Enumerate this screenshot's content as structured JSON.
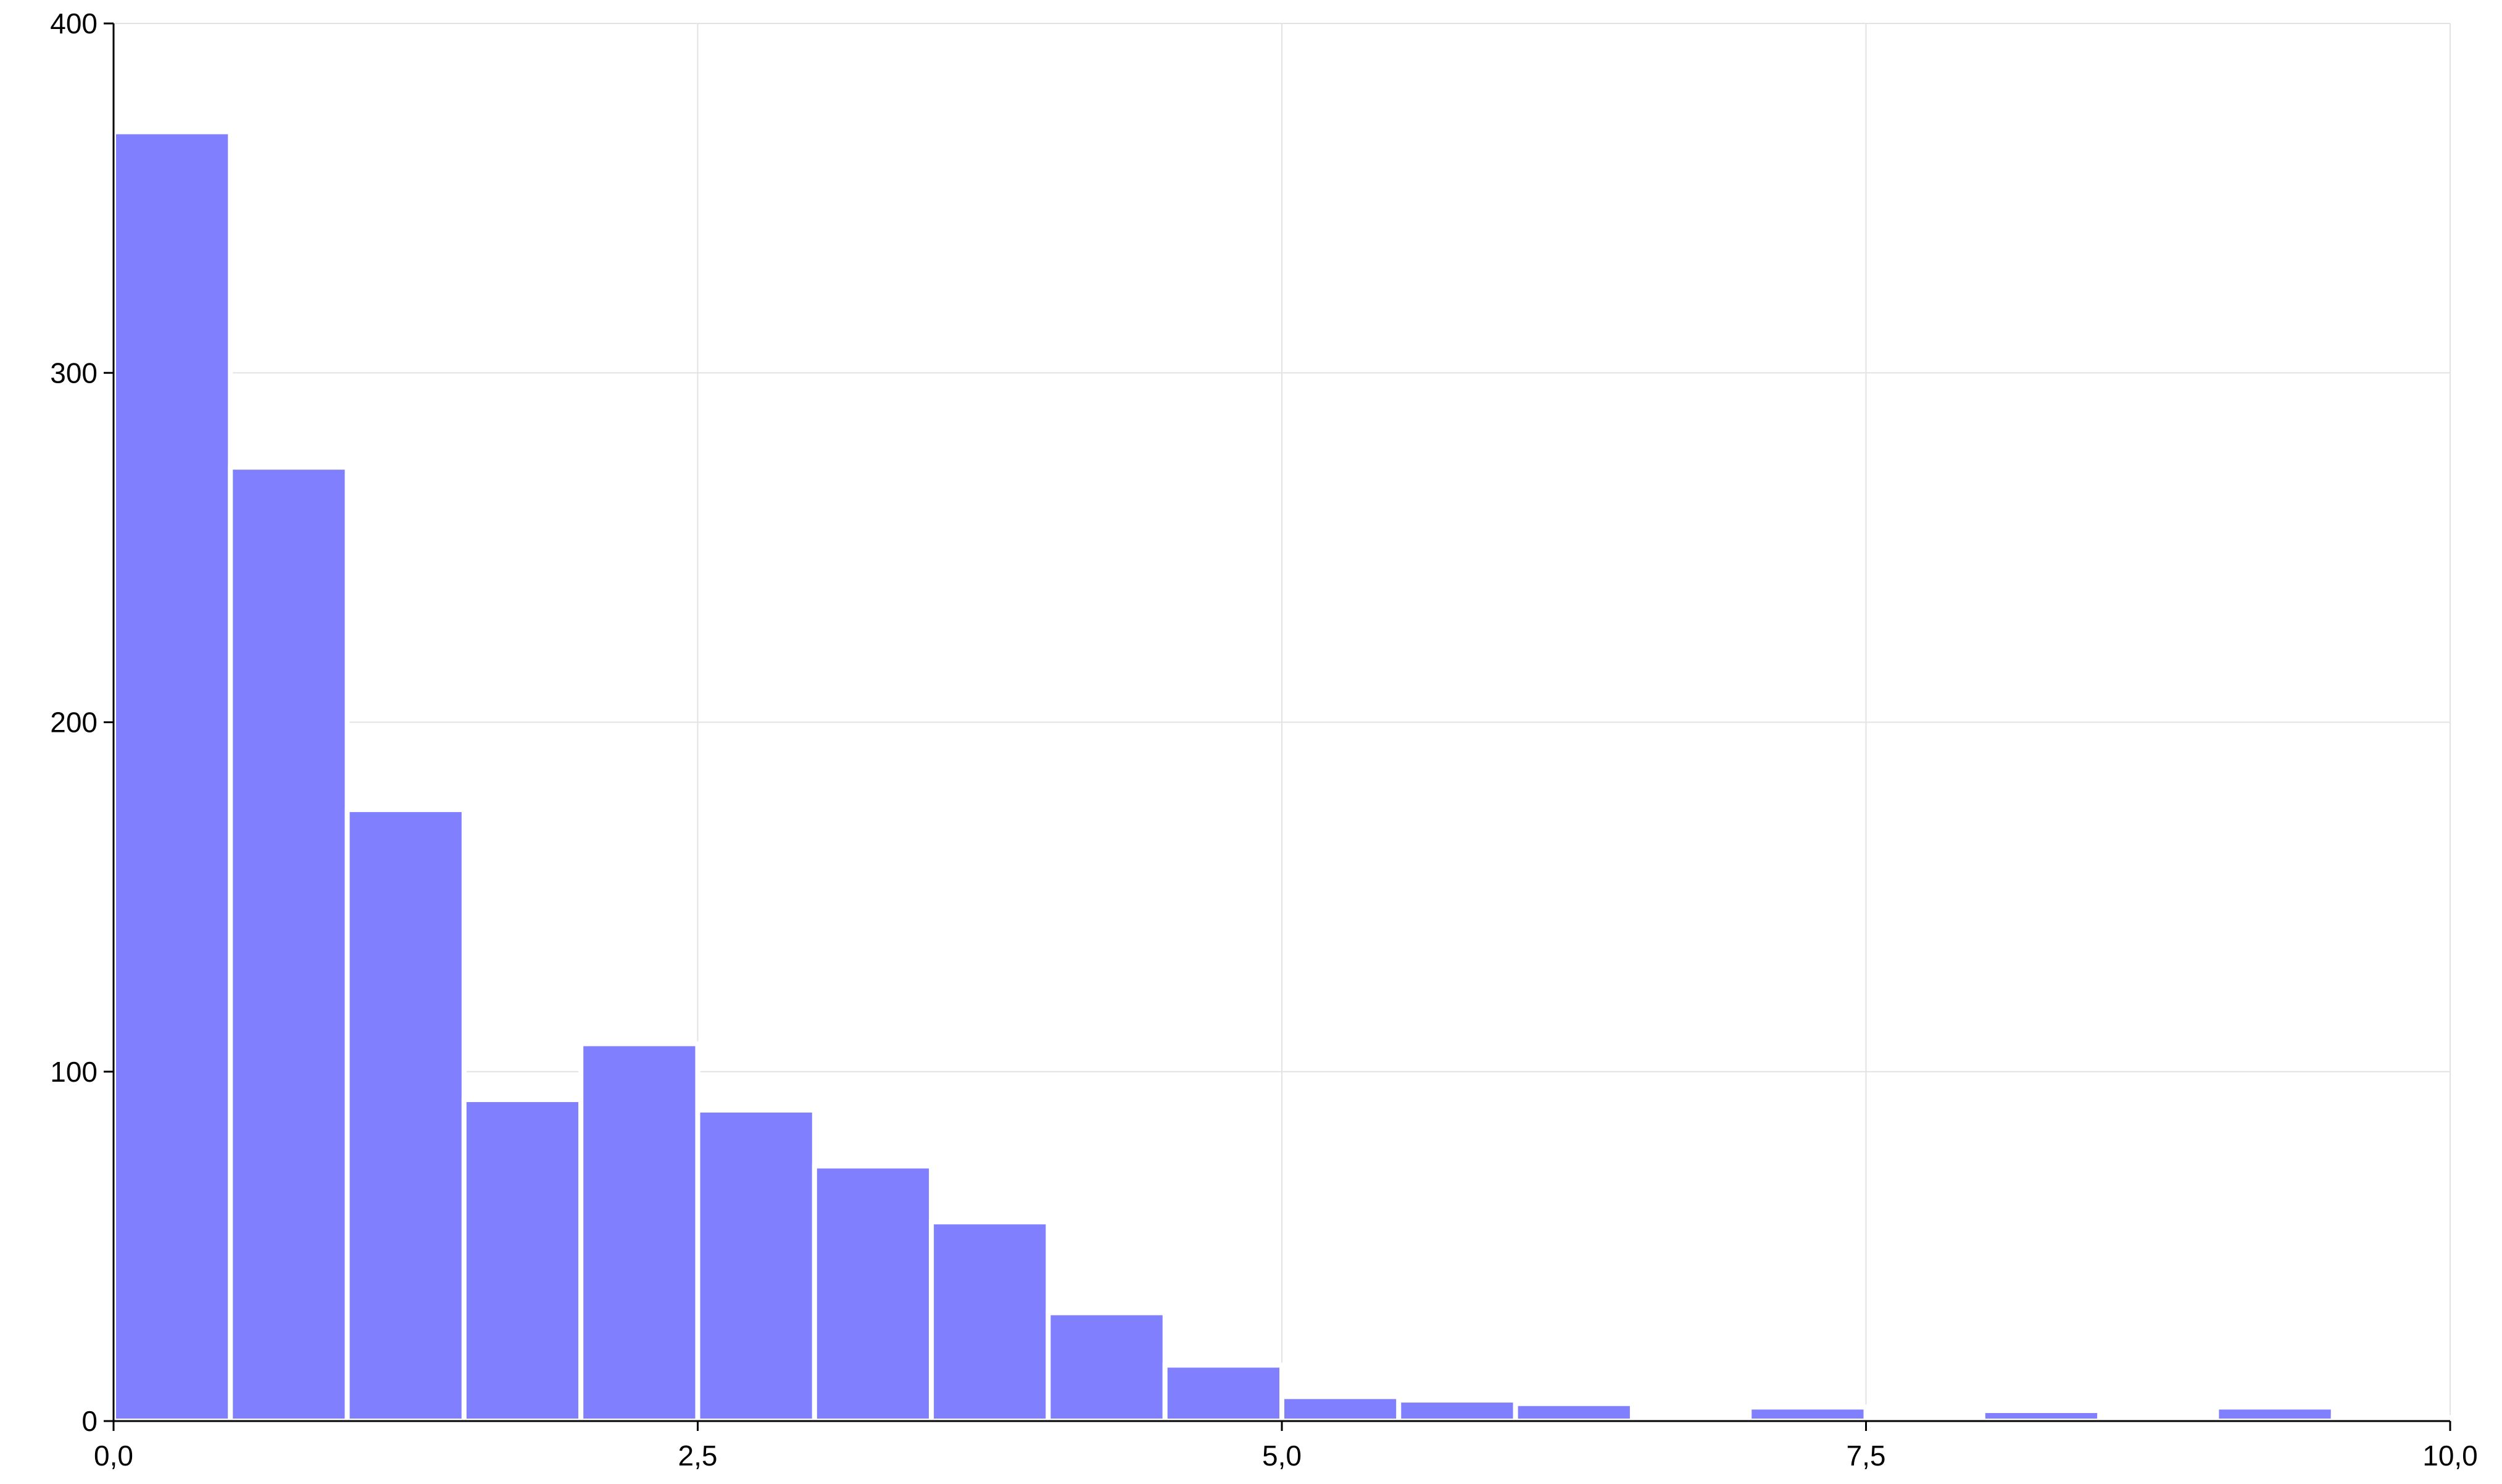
{
  "chart_data": {
    "type": "bar",
    "subtype": "histogram",
    "bin_width": 0.5,
    "bins": [
      {
        "x0": 0.0,
        "x1": 0.5,
        "count": 369
      },
      {
        "x0": 0.5,
        "x1": 1.0,
        "count": 273
      },
      {
        "x0": 1.0,
        "x1": 1.5,
        "count": 175
      },
      {
        "x0": 1.5,
        "x1": 2.0,
        "count": 92
      },
      {
        "x0": 2.0,
        "x1": 2.5,
        "count": 108
      },
      {
        "x0": 2.5,
        "x1": 3.0,
        "count": 89
      },
      {
        "x0": 3.0,
        "x1": 3.5,
        "count": 73
      },
      {
        "x0": 3.5,
        "x1": 4.0,
        "count": 57
      },
      {
        "x0": 4.0,
        "x1": 4.5,
        "count": 31
      },
      {
        "x0": 4.5,
        "x1": 5.0,
        "count": 16
      },
      {
        "x0": 5.0,
        "x1": 5.5,
        "count": 7
      },
      {
        "x0": 5.5,
        "x1": 6.0,
        "count": 6
      },
      {
        "x0": 6.0,
        "x1": 6.5,
        "count": 5
      },
      {
        "x0": 6.5,
        "x1": 7.0,
        "count": 0
      },
      {
        "x0": 7.0,
        "x1": 7.5,
        "count": 4
      },
      {
        "x0": 7.5,
        "x1": 8.0,
        "count": 0
      },
      {
        "x0": 8.0,
        "x1": 8.5,
        "count": 3
      },
      {
        "x0": 8.5,
        "x1": 9.0,
        "count": 1
      },
      {
        "x0": 9.0,
        "x1": 9.5,
        "count": 4
      },
      {
        "x0": 9.5,
        "x1": 10.0,
        "count": 1
      }
    ],
    "xlim": [
      0,
      10
    ],
    "ylim": [
      0,
      400
    ],
    "x_ticks": [
      0,
      2.5,
      5,
      7.5,
      10
    ],
    "x_tick_labels": [
      "0,0",
      "2,5",
      "5,0",
      "7,5",
      "10,0"
    ],
    "y_ticks": [
      0,
      100,
      200,
      300,
      400
    ],
    "y_tick_labels": [
      "0",
      "100",
      "200",
      "300",
      "400"
    ],
    "title": "",
    "xlabel": "",
    "ylabel": "",
    "grid": true,
    "legend": "none",
    "colors": {
      "bar_fill": "#8080ff",
      "bar_stroke": "#ffffff",
      "grid": "#e3e3e3",
      "axis": "#000000",
      "text": "#000000"
    }
  }
}
